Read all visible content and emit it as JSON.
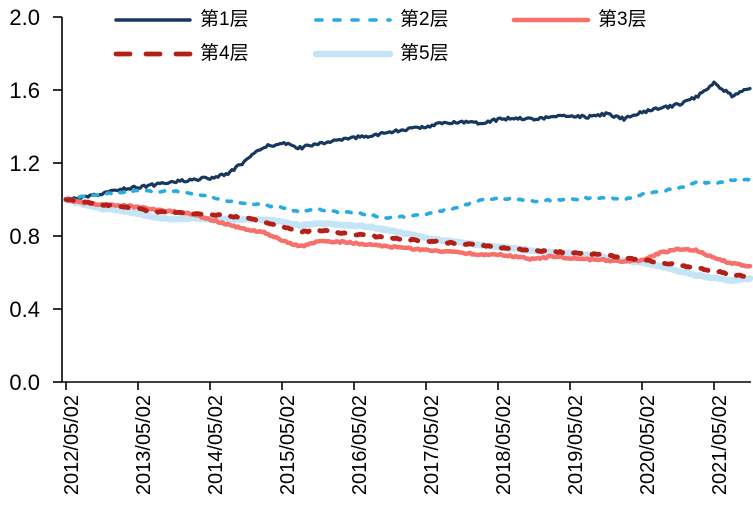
{
  "figure": {
    "background_color": "#ffffff",
    "axis_color": "#000000",
    "tick_label_color": "#000000"
  },
  "chart_data": {
    "type": "line",
    "title": "",
    "xlabel": "",
    "ylabel": "",
    "grid": false,
    "legend_position": "top",
    "ylim": [
      0.0,
      2.0
    ],
    "y_tick_values": [
      0.0,
      0.4,
      0.8,
      1.2,
      1.6,
      2.0
    ],
    "y_tick_labels": [
      "0.0",
      "0.4",
      "0.8",
      "1.2",
      "1.6",
      "2.0"
    ],
    "x_tick_labels": [
      "2012/05/02",
      "2013/05/02",
      "2014/05/02",
      "2015/05/02",
      "2016/05/02",
      "2017/05/02",
      "2018/05/02",
      "2019/05/02",
      "2020/05/02",
      "2021/05/02"
    ],
    "x_unit": "months since 2012/05/02",
    "x_months": [
      0,
      3,
      6,
      9,
      12,
      15,
      18,
      21,
      24,
      27,
      30,
      33,
      36,
      39,
      42,
      45,
      48,
      51,
      54,
      57,
      60,
      63,
      66,
      69,
      72,
      75,
      78,
      81,
      84,
      87,
      90,
      93,
      96,
      99,
      102,
      105,
      108,
      111,
      114
    ],
    "series": [
      {
        "name": "第1层",
        "color": "#17375e",
        "line_style": "solid",
        "line_width": 3.2,
        "values": [
          1.0,
          1.01,
          1.03,
          1.058,
          1.068,
          1.082,
          1.098,
          1.108,
          1.118,
          1.14,
          1.215,
          1.288,
          1.31,
          1.282,
          1.308,
          1.32,
          1.338,
          1.352,
          1.368,
          1.385,
          1.4,
          1.418,
          1.428,
          1.42,
          1.438,
          1.448,
          1.44,
          1.452,
          1.46,
          1.452,
          1.468,
          1.442,
          1.478,
          1.498,
          1.52,
          1.56,
          1.64,
          1.568,
          1.608
        ]
      },
      {
        "name": "第2层",
        "color": "#29abe2",
        "line_style": "dashed",
        "line_width": 3.6,
        "values": [
          1.0,
          1.018,
          1.028,
          1.04,
          1.05,
          1.042,
          1.048,
          1.032,
          1.012,
          0.992,
          0.98,
          0.968,
          0.958,
          0.93,
          0.948,
          0.932,
          0.928,
          0.912,
          0.9,
          0.908,
          0.92,
          0.94,
          0.962,
          0.998,
          1.008,
          1.0,
          0.99,
          0.998,
          1.0,
          1.008,
          1.012,
          0.998,
          1.028,
          1.048,
          1.058,
          1.098,
          1.088,
          1.108,
          1.112
        ]
      },
      {
        "name": "第3层",
        "color": "#f7716c",
        "line_style": "solid",
        "line_width": 4.5,
        "values": [
          1.0,
          0.982,
          0.97,
          0.968,
          0.958,
          0.942,
          0.932,
          0.92,
          0.892,
          0.862,
          0.838,
          0.82,
          0.775,
          0.742,
          0.772,
          0.77,
          0.762,
          0.752,
          0.742,
          0.732,
          0.725,
          0.715,
          0.708,
          0.7,
          0.698,
          0.688,
          0.672,
          0.688,
          0.678,
          0.672,
          0.668,
          0.658,
          0.668,
          0.708,
          0.728,
          0.722,
          0.682,
          0.65,
          0.635
        ]
      },
      {
        "name": "第4层",
        "color": "#b42018",
        "line_style": "dashed",
        "line_width": 4.8,
        "values": [
          1.0,
          0.988,
          0.972,
          0.962,
          0.95,
          0.932,
          0.93,
          0.922,
          0.918,
          0.91,
          0.9,
          0.878,
          0.85,
          0.822,
          0.832,
          0.82,
          0.81,
          0.8,
          0.79,
          0.78,
          0.772,
          0.765,
          0.758,
          0.748,
          0.736,
          0.73,
          0.72,
          0.715,
          0.708,
          0.702,
          0.698,
          0.68,
          0.67,
          0.655,
          0.64,
          0.625,
          0.61,
          0.59,
          0.575
        ]
      },
      {
        "name": "第5层",
        "color": "#c4e5f5",
        "line_style": "solid",
        "line_width": 6.5,
        "values": [
          1.0,
          0.972,
          0.95,
          0.94,
          0.922,
          0.902,
          0.892,
          0.898,
          0.892,
          0.89,
          0.892,
          0.888,
          0.878,
          0.858,
          0.87,
          0.864,
          0.858,
          0.848,
          0.83,
          0.81,
          0.79,
          0.775,
          0.762,
          0.75,
          0.74,
          0.73,
          0.72,
          0.71,
          0.705,
          0.695,
          0.68,
          0.665,
          0.655,
          0.635,
          0.61,
          0.585,
          0.57,
          0.555,
          0.568
        ]
      }
    ]
  }
}
